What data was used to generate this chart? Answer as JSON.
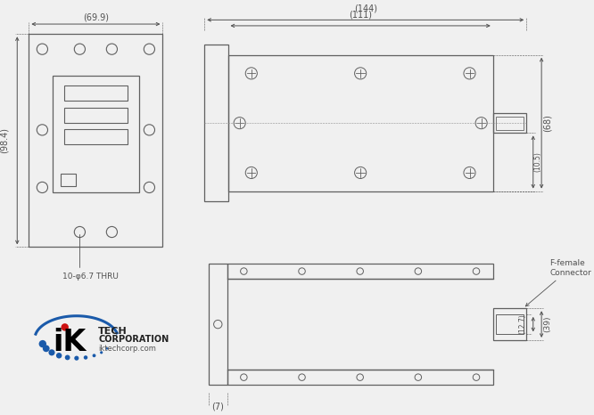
{
  "bg_color": "#f0f0f0",
  "line_color": "#606060",
  "dim_color": "#505050",
  "dim_69_9": "(69.9)",
  "dim_98_4": "(98.4)",
  "dim_144": "(144)",
  "dim_111": "(111)",
  "dim_68": "(68)",
  "dim_10_5": "(10.5)",
  "dim_7": "(7)",
  "dim_12_7": "(12.7)",
  "dim_39": "(39)",
  "hole_label": "10-φ6.7 THRU",
  "connector_label1": "F-female",
  "connector_label2": "Connector",
  "logo_text_ik": "iK",
  "logo_text_tech": "TECH",
  "logo_text_corp": "CORPORATION",
  "logo_text_web": "iktechcorp.com",
  "blue_color": "#1a5aaa",
  "red_color": "#cc1111"
}
